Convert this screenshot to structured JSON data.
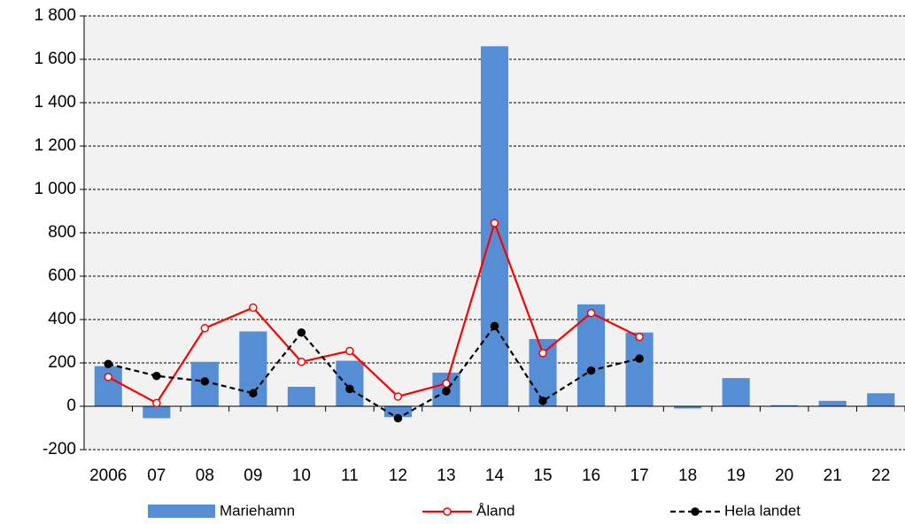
{
  "chart_data": {
    "type": "bar_line",
    "categories": [
      "2006",
      "07",
      "08",
      "09",
      "10",
      "11",
      "12",
      "13",
      "14",
      "15",
      "16",
      "17",
      "18",
      "19",
      "20",
      "21",
      "22"
    ],
    "series": [
      {
        "name": "Mariehamn",
        "type": "bar",
        "color": "#558ed5",
        "values": [
          185,
          -55,
          205,
          345,
          90,
          210,
          -50,
          155,
          1660,
          310,
          470,
          340,
          -10,
          130,
          5,
          25,
          60
        ]
      },
      {
        "name": "Åland",
        "type": "line",
        "color": "#ff0000",
        "values": [
          135,
          15,
          360,
          455,
          205,
          255,
          45,
          105,
          845,
          245,
          430,
          320,
          null,
          null,
          null,
          null,
          null
        ]
      },
      {
        "name": "Hela landet",
        "type": "line",
        "color": "#000000",
        "dashed": true,
        "values": [
          195,
          140,
          115,
          60,
          340,
          80,
          -55,
          70,
          370,
          25,
          165,
          220,
          null,
          null,
          null,
          null,
          null
        ]
      }
    ],
    "ylim": [
      -200,
      1800
    ],
    "yticks": [
      -200,
      0,
      200,
      400,
      600,
      800,
      {
        "value": 1000,
        "label": "1 000"
      },
      {
        "value": 1200,
        "label": "1 200"
      },
      {
        "value": 1400,
        "label": "1 400"
      },
      {
        "value": 1600,
        "label": "1 600"
      },
      {
        "value": 1800,
        "label": "1 800"
      }
    ],
    "grid": true,
    "legend": "bottom"
  }
}
